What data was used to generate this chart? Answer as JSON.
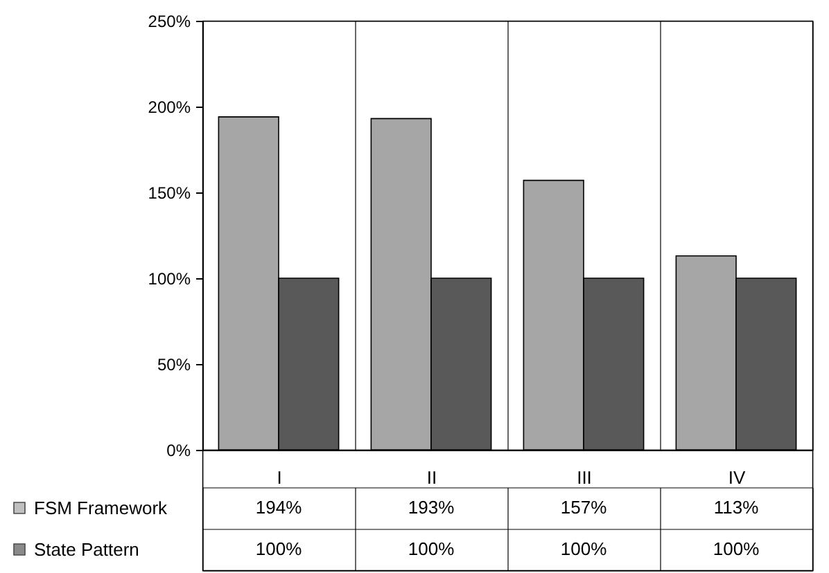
{
  "chart_data": {
    "type": "bar",
    "categories": [
      "I",
      "II",
      "III",
      "IV"
    ],
    "series": [
      {
        "name": "FSM Framework",
        "color": "#a6a6a6",
        "values": [
          194,
          193,
          157,
          113
        ],
        "value_labels": [
          "194%",
          "193%",
          "157%",
          "113%"
        ]
      },
      {
        "name": "State Pattern",
        "color": "#595959",
        "values": [
          100,
          100,
          100,
          100
        ],
        "value_labels": [
          "100%",
          "100%",
          "100%",
          "100%"
        ]
      }
    ],
    "ylim": [
      0,
      250
    ],
    "yticks": [
      {
        "value": 0,
        "label": "0%"
      },
      {
        "value": 50,
        "label": "50%"
      },
      {
        "value": 100,
        "label": "100%"
      },
      {
        "value": 150,
        "label": "150%"
      },
      {
        "value": 200,
        "label": "200%"
      },
      {
        "value": 250,
        "label": "250%"
      }
    ],
    "grid": "x",
    "legend": "bottom"
  }
}
